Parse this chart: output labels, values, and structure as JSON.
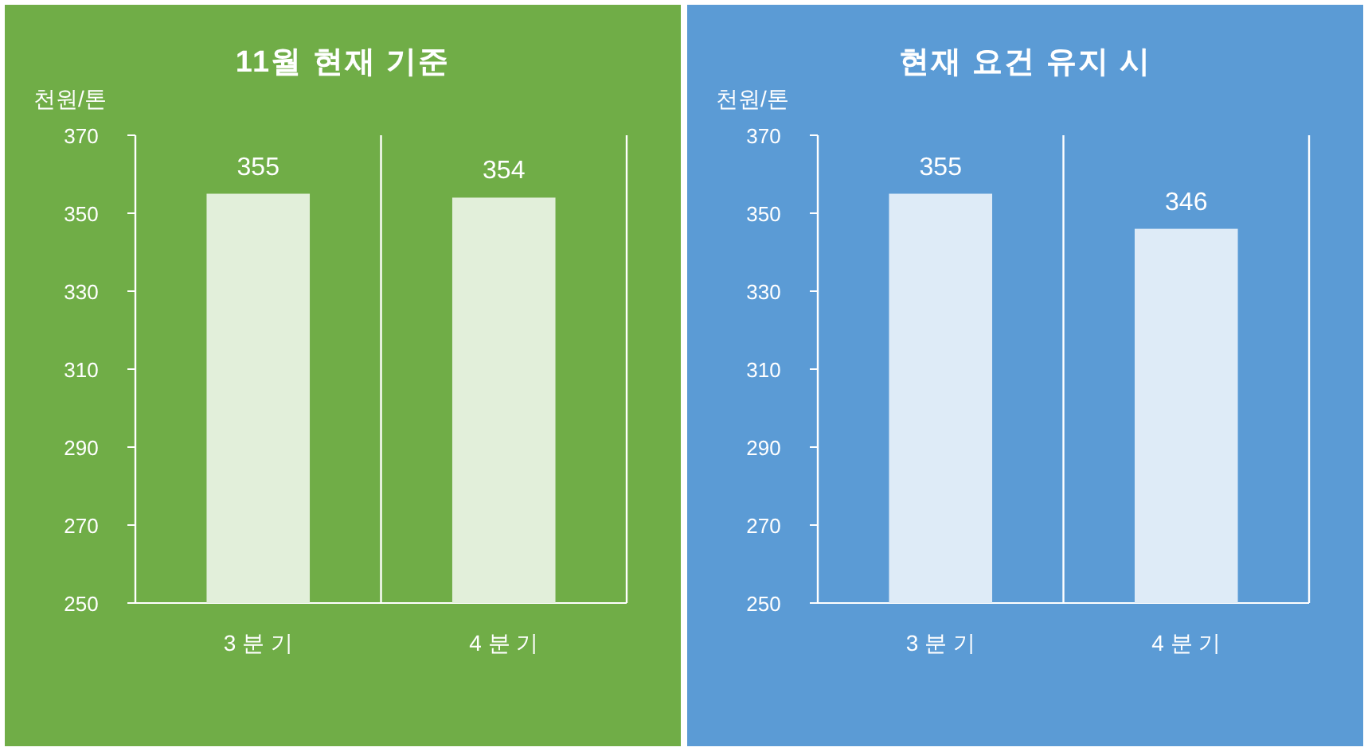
{
  "chart_data": [
    {
      "type": "bar",
      "title": "11월 현재 기준",
      "ylabel": "천원/톤",
      "categories": [
        "3 분 기",
        "4 분 기"
      ],
      "values": [
        355,
        354
      ],
      "color": "#e2efda",
      "ylim": [
        250,
        370
      ],
      "yticks": [
        250,
        270,
        290,
        310,
        330,
        350,
        370
      ],
      "grid": "x",
      "data_labels": true
    },
    {
      "type": "bar",
      "title": "현재 요건 유지 시",
      "ylabel": "천원/톤",
      "categories": [
        "3 분 기",
        "4 분 기"
      ],
      "values": [
        355,
        346
      ],
      "color": "#deebf7",
      "ylim": [
        250,
        370
      ],
      "yticks": [
        250,
        270,
        290,
        310,
        330,
        350,
        370
      ],
      "grid": "x",
      "data_labels": true
    }
  ]
}
